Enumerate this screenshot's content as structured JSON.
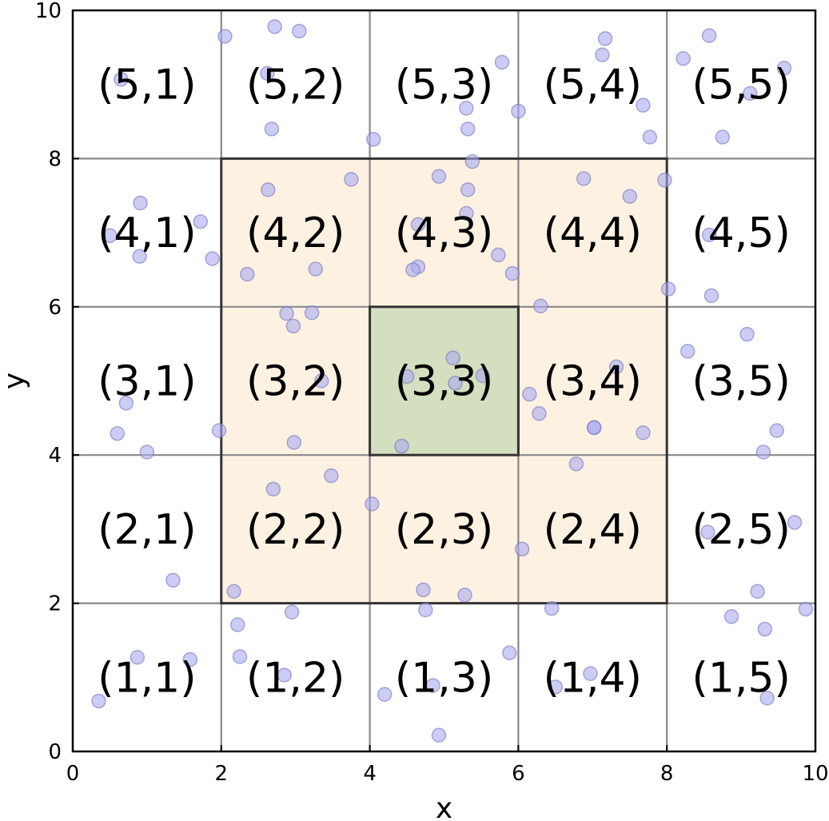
{
  "chart_data": {
    "type": "scatter",
    "title": "",
    "xlabel": "x",
    "ylabel": "y",
    "xlim": [
      0,
      10
    ],
    "ylim": [
      0,
      10
    ],
    "xticks": [
      0,
      2,
      4,
      6,
      8,
      10
    ],
    "yticks": [
      0,
      2,
      4,
      6,
      8,
      10
    ],
    "grid": true,
    "grid_step": 2,
    "cell_labels": [
      {
        "x": 1,
        "y": 9,
        "text": "(5,1)"
      },
      {
        "x": 3,
        "y": 9,
        "text": "(5,2)"
      },
      {
        "x": 5,
        "y": 9,
        "text": "(5,3)"
      },
      {
        "x": 7,
        "y": 9,
        "text": "(5,4)"
      },
      {
        "x": 9,
        "y": 9,
        "text": "(5,5)"
      },
      {
        "x": 1,
        "y": 7,
        "text": "(4,1)"
      },
      {
        "x": 3,
        "y": 7,
        "text": "(4,2)"
      },
      {
        "x": 5,
        "y": 7,
        "text": "(4,3)"
      },
      {
        "x": 7,
        "y": 7,
        "text": "(4,4)"
      },
      {
        "x": 9,
        "y": 7,
        "text": "(4,5)"
      },
      {
        "x": 1,
        "y": 5,
        "text": "(3,1)"
      },
      {
        "x": 3,
        "y": 5,
        "text": "(3,2)"
      },
      {
        "x": 5,
        "y": 5,
        "text": "(3,3)"
      },
      {
        "x": 7,
        "y": 5,
        "text": "(3,4)"
      },
      {
        "x": 9,
        "y": 5,
        "text": "(3,5)"
      },
      {
        "x": 1,
        "y": 3,
        "text": "(2,1)"
      },
      {
        "x": 3,
        "y": 3,
        "text": "(2,2)"
      },
      {
        "x": 5,
        "y": 3,
        "text": "(2,3)"
      },
      {
        "x": 7,
        "y": 3,
        "text": "(2,4)"
      },
      {
        "x": 9,
        "y": 3,
        "text": "(2,5)"
      },
      {
        "x": 1,
        "y": 1,
        "text": "(1,1)"
      },
      {
        "x": 3,
        "y": 1,
        "text": "(1,2)"
      },
      {
        "x": 5,
        "y": 1,
        "text": "(1,3)"
      },
      {
        "x": 7,
        "y": 1,
        "text": "(1,4)"
      },
      {
        "x": 9,
        "y": 1,
        "text": "(1,5)"
      }
    ],
    "highlight_regions": [
      {
        "x0": 2,
        "y0": 2,
        "x1": 8,
        "y1": 8,
        "fill": "#fdf2e2"
      },
      {
        "x0": 4,
        "y0": 4,
        "x1": 6,
        "y1": 6,
        "fill": "#d3dfbe"
      }
    ],
    "point_color": "#aaaaf0",
    "point_edge_color": "#7777bb",
    "points": [
      [
        2.05,
        9.65
      ],
      [
        2.72,
        9.78
      ],
      [
        3.05,
        9.72
      ],
      [
        5.78,
        9.3
      ],
      [
        7.17,
        9.62
      ],
      [
        7.13,
        9.4
      ],
      [
        8.57,
        9.66
      ],
      [
        8.22,
        9.35
      ],
      [
        9.58,
        9.22
      ],
      [
        0.65,
        9.07
      ],
      [
        2.62,
        9.15
      ],
      [
        9.12,
        8.88
      ],
      [
        5.3,
        8.68
      ],
      [
        6.0,
        8.64
      ],
      [
        7.68,
        8.72
      ],
      [
        5.32,
        8.4
      ],
      [
        2.68,
        8.4
      ],
      [
        4.05,
        8.26
      ],
      [
        7.77,
        8.29
      ],
      [
        8.75,
        8.29
      ],
      [
        5.38,
        7.96
      ],
      [
        3.75,
        7.72
      ],
      [
        4.93,
        7.76
      ],
      [
        6.88,
        7.73
      ],
      [
        7.97,
        7.71
      ],
      [
        2.63,
        7.58
      ],
      [
        5.32,
        7.58
      ],
      [
        7.5,
        7.49
      ],
      [
        0.91,
        7.4
      ],
      [
        5.3,
        7.26
      ],
      [
        1.72,
        7.15
      ],
      [
        4.65,
        7.11
      ],
      [
        0.5,
        6.96
      ],
      [
        8.57,
        6.97
      ],
      [
        0.9,
        6.68
      ],
      [
        1.88,
        6.65
      ],
      [
        5.73,
        6.7
      ],
      [
        4.65,
        6.54
      ],
      [
        3.27,
        6.51
      ],
      [
        4.58,
        6.5
      ],
      [
        2.35,
        6.44
      ],
      [
        5.92,
        6.45
      ],
      [
        8.02,
        6.24
      ],
      [
        8.6,
        6.15
      ],
      [
        6.3,
        6.01
      ],
      [
        2.88,
        5.91
      ],
      [
        3.22,
        5.92
      ],
      [
        2.97,
        5.74
      ],
      [
        9.08,
        5.63
      ],
      [
        5.12,
        5.31
      ],
      [
        8.28,
        5.4
      ],
      [
        7.32,
        5.19
      ],
      [
        4.5,
        5.06
      ],
      [
        5.52,
        5.07
      ],
      [
        3.35,
        5.0
      ],
      [
        5.15,
        4.97
      ],
      [
        6.15,
        4.82
      ],
      [
        0.72,
        4.7
      ],
      [
        6.28,
        4.56
      ],
      [
        7.02,
        4.37
      ],
      [
        7.02,
        4.37
      ],
      [
        9.48,
        4.33
      ],
      [
        1.97,
        4.33
      ],
      [
        0.6,
        4.29
      ],
      [
        7.68,
        4.3
      ],
      [
        2.98,
        4.17
      ],
      [
        4.43,
        4.12
      ],
      [
        1.0,
        4.04
      ],
      [
        9.3,
        4.04
      ],
      [
        6.78,
        3.88
      ],
      [
        3.48,
        3.72
      ],
      [
        2.7,
        3.54
      ],
      [
        4.03,
        3.34
      ],
      [
        9.72,
        3.09
      ],
      [
        8.55,
        2.96
      ],
      [
        6.05,
        2.73
      ],
      [
        1.35,
        2.31
      ],
      [
        2.17,
        2.16
      ],
      [
        4.72,
        2.18
      ],
      [
        5.28,
        2.11
      ],
      [
        9.22,
        2.16
      ],
      [
        4.75,
        1.91
      ],
      [
        2.95,
        1.88
      ],
      [
        6.45,
        1.93
      ],
      [
        8.87,
        1.82
      ],
      [
        9.87,
        1.92
      ],
      [
        2.22,
        1.71
      ],
      [
        9.32,
        1.65
      ],
      [
        5.88,
        1.33
      ],
      [
        0.87,
        1.27
      ],
      [
        2.25,
        1.28
      ],
      [
        1.58,
        1.24
      ],
      [
        6.97,
        1.05
      ],
      [
        2.85,
        1.03
      ],
      [
        4.85,
        0.89
      ],
      [
        6.5,
        0.87
      ],
      [
        4.2,
        0.77
      ],
      [
        0.35,
        0.68
      ],
      [
        9.35,
        0.72
      ],
      [
        4.93,
        0.22
      ]
    ]
  }
}
